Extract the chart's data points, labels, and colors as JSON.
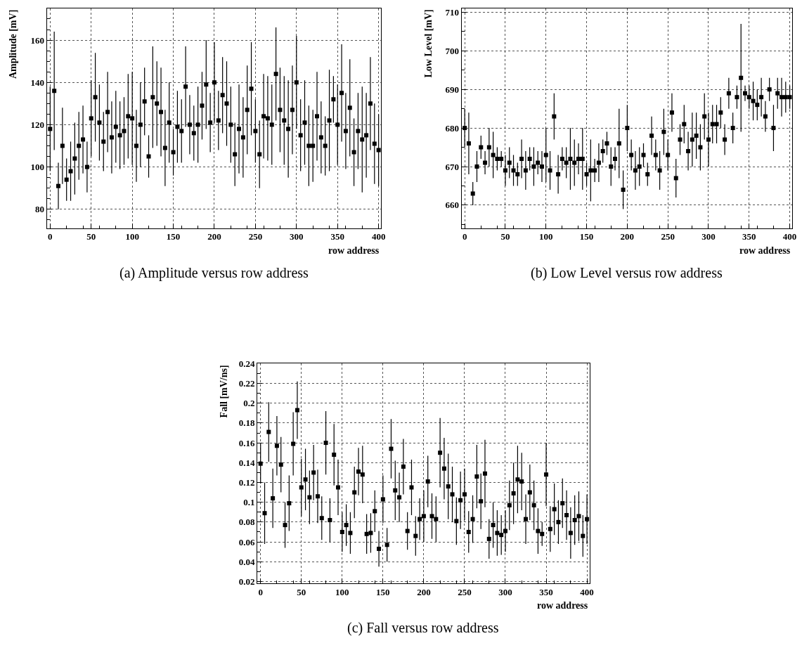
{
  "chart_data": [
    {
      "type": "scatter",
      "xlabel": "row address",
      "ylabel": "Amplitude [mV]",
      "annotations": [
        "(a) Amplitude versus row address"
      ],
      "marker": "square",
      "grid": true,
      "color": "#000000",
      "x": [
        0,
        5,
        10,
        15,
        20,
        25,
        30,
        35,
        40,
        45,
        50,
        55,
        60,
        65,
        70,
        75,
        80,
        85,
        90,
        95,
        100,
        105,
        110,
        115,
        120,
        125,
        130,
        135,
        140,
        145,
        150,
        155,
        160,
        165,
        170,
        175,
        180,
        185,
        190,
        195,
        200,
        205,
        210,
        215,
        220,
        225,
        230,
        235,
        240,
        245,
        250,
        255,
        260,
        265,
        270,
        275,
        280,
        285,
        290,
        295,
        300,
        305,
        310,
        315,
        320,
        325,
        330,
        335,
        340,
        345,
        350,
        355,
        360,
        365,
        370,
        375,
        380,
        385,
        390,
        395,
        400
      ],
      "values": [
        118,
        136,
        91,
        110,
        94,
        98,
        104,
        110,
        113,
        100,
        123,
        133,
        121,
        112,
        126,
        114,
        119,
        115,
        117,
        124,
        123,
        110,
        120,
        131,
        105,
        133,
        130,
        126,
        109,
        121,
        107,
        119,
        117,
        138,
        120,
        116,
        120,
        129,
        139,
        121,
        140,
        122,
        134,
        130,
        120,
        106,
        118,
        114,
        127,
        137,
        117,
        106,
        124,
        123,
        120,
        144,
        127,
        122,
        118,
        127,
        140,
        115,
        121,
        110,
        110,
        124,
        114,
        110,
        122,
        132,
        120,
        135,
        117,
        128,
        107,
        117,
        113,
        115,
        130,
        111,
        108
      ],
      "errors": [
        20,
        28,
        11,
        18,
        10,
        14,
        17,
        16,
        16,
        12,
        18,
        21,
        18,
        14,
        19,
        17,
        17,
        16,
        16,
        20,
        22,
        17,
        20,
        16,
        10,
        24,
        20,
        21,
        18,
        19,
        11,
        17,
        15,
        19,
        14,
        13,
        18,
        16,
        21,
        14,
        19,
        14,
        18,
        20,
        18,
        15,
        21,
        19,
        21,
        22,
        15,
        16,
        20,
        20,
        19,
        22,
        20,
        21,
        23,
        21,
        22,
        17,
        20,
        19,
        17,
        21,
        17,
        14,
        24,
        11,
        19,
        23,
        18,
        23,
        16,
        18,
        25,
        20,
        22,
        19,
        17
      ],
      "xlim": [
        -4,
        403
      ],
      "ylim": [
        71,
        175
      ],
      "xticks": [
        0,
        50,
        100,
        150,
        200,
        250,
        300,
        350,
        400
      ],
      "yticks": [
        80,
        100,
        120,
        140,
        160
      ]
    },
    {
      "type": "scatter",
      "xlabel": "row address",
      "ylabel": "Low Level [mV]",
      "annotations": [
        "(b) Low Level versus row address"
      ],
      "marker": "square",
      "grid": true,
      "color": "#000000",
      "x": [
        0,
        5,
        10,
        15,
        20,
        25,
        30,
        35,
        40,
        45,
        50,
        55,
        60,
        65,
        70,
        75,
        80,
        85,
        90,
        95,
        100,
        105,
        110,
        115,
        120,
        125,
        130,
        135,
        140,
        145,
        150,
        155,
        160,
        165,
        170,
        175,
        180,
        185,
        190,
        195,
        200,
        205,
        210,
        215,
        220,
        225,
        230,
        235,
        240,
        245,
        250,
        255,
        260,
        265,
        270,
        275,
        280,
        285,
        290,
        295,
        300,
        305,
        310,
        315,
        320,
        325,
        330,
        335,
        340,
        345,
        350,
        355,
        360,
        365,
        370,
        375,
        380,
        385,
        390,
        395,
        400
      ],
      "values": [
        680,
        676,
        663,
        670,
        675,
        671,
        675,
        673,
        672,
        672,
        669,
        671,
        669,
        668,
        672,
        669,
        672,
        670,
        671,
        670,
        673,
        669,
        683,
        668,
        672,
        671,
        672,
        671,
        672,
        672,
        668,
        669,
        669,
        671,
        674,
        676,
        670,
        672,
        676,
        664,
        680,
        673,
        669,
        670,
        673,
        668,
        678,
        673,
        669,
        679,
        673,
        684,
        667,
        677,
        681,
        674,
        677,
        678,
        675,
        683,
        677,
        681,
        681,
        684,
        677,
        689,
        680,
        688,
        693,
        689,
        688,
        687,
        686,
        688,
        683,
        690,
        680,
        689,
        688,
        688,
        688
      ],
      "errors": [
        5,
        8,
        3,
        4,
        3,
        3,
        5,
        6,
        3,
        2,
        4,
        4,
        4,
        3,
        5,
        5,
        3,
        5,
        3,
        4,
        7,
        5,
        6,
        5,
        3,
        4,
        8,
        6,
        4,
        8,
        3,
        8,
        3,
        5,
        3,
        3,
        5,
        3,
        9,
        5,
        6,
        4,
        5,
        5,
        3,
        3,
        5,
        4,
        5,
        6,
        4,
        5,
        5,
        4,
        5,
        5,
        7,
        6,
        6,
        6,
        7,
        5,
        5,
        4,
        4,
        4,
        4,
        3,
        14,
        2,
        3,
        5,
        4,
        5,
        4,
        3,
        6,
        4,
        5,
        4,
        3
      ],
      "xlim": [
        -4,
        403
      ],
      "ylim": [
        654,
        711
      ],
      "xticks": [
        0,
        50,
        100,
        150,
        200,
        250,
        300,
        350,
        400
      ],
      "yticks": [
        660,
        670,
        680,
        690,
        700,
        710
      ]
    },
    {
      "type": "scatter",
      "xlabel": "row address",
      "ylabel": "Fall [mV/ns]",
      "annotations": [
        "(c) Fall versus row address"
      ],
      "marker": "square",
      "grid": true,
      "color": "#000000",
      "x": [
        0,
        5,
        10,
        15,
        20,
        25,
        30,
        35,
        40,
        45,
        50,
        55,
        60,
        65,
        70,
        75,
        80,
        85,
        90,
        95,
        100,
        105,
        110,
        115,
        120,
        125,
        130,
        135,
        140,
        145,
        150,
        155,
        160,
        165,
        170,
        175,
        180,
        185,
        190,
        195,
        200,
        205,
        210,
        215,
        220,
        225,
        230,
        235,
        240,
        245,
        250,
        255,
        260,
        265,
        270,
        275,
        280,
        285,
        290,
        295,
        300,
        305,
        310,
        315,
        320,
        325,
        330,
        335,
        340,
        345,
        350,
        355,
        360,
        365,
        370,
        375,
        380,
        385,
        390,
        395,
        400
      ],
      "values": [
        0.139,
        0.089,
        0.171,
        0.104,
        0.157,
        0.138,
        0.077,
        0.099,
        0.159,
        0.193,
        0.115,
        0.123,
        0.105,
        0.13,
        0.106,
        0.084,
        0.16,
        0.082,
        0.148,
        0.115,
        0.07,
        0.077,
        0.069,
        0.11,
        0.131,
        0.128,
        0.068,
        0.069,
        0.091,
        0.053,
        0.103,
        0.057,
        0.154,
        0.112,
        0.105,
        0.136,
        0.071,
        0.115,
        0.066,
        0.083,
        0.086,
        0.121,
        0.086,
        0.083,
        0.15,
        0.134,
        0.116,
        0.108,
        0.081,
        0.102,
        0.108,
        0.07,
        0.083,
        0.126,
        0.101,
        0.129,
        0.063,
        0.077,
        0.069,
        0.067,
        0.071,
        0.097,
        0.109,
        0.123,
        0.121,
        0.083,
        0.11,
        0.097,
        0.071,
        0.068,
        0.128,
        0.073,
        0.093,
        0.08,
        0.099,
        0.087,
        0.069,
        0.082,
        0.086,
        0.066,
        0.083
      ],
      "errors": [
        0.02,
        0.031,
        0.03,
        0.03,
        0.03,
        0.028,
        0.023,
        0.028,
        0.032,
        0.029,
        0.029,
        0.031,
        0.027,
        0.028,
        0.027,
        0.022,
        0.032,
        0.022,
        0.031,
        0.028,
        0.02,
        0.021,
        0.021,
        0.026,
        0.024,
        0.029,
        0.02,
        0.02,
        0.021,
        0.018,
        0.024,
        0.017,
        0.03,
        0.03,
        0.025,
        0.028,
        0.019,
        0.028,
        0.02,
        0.021,
        0.026,
        0.026,
        0.023,
        0.023,
        0.035,
        0.031,
        0.033,
        0.028,
        0.024,
        0.029,
        0.026,
        0.021,
        0.024,
        0.032,
        0.028,
        0.034,
        0.02,
        0.023,
        0.023,
        0.02,
        0.021,
        0.025,
        0.031,
        0.034,
        0.029,
        0.025,
        0.028,
        0.025,
        0.023,
        0.012,
        0.032,
        0.023,
        0.026,
        0.022,
        0.025,
        0.025,
        0.026,
        0.025,
        0.025,
        0.021,
        0.025
      ],
      "xlim": [
        -4,
        403
      ],
      "ylim": [
        0.018,
        0.24
      ],
      "xticks": [
        0,
        50,
        100,
        150,
        200,
        250,
        300,
        350,
        400
      ],
      "yticks": [
        0.02,
        0.04,
        0.06,
        0.08,
        0.1,
        0.12,
        0.14,
        0.16,
        0.18,
        0.2,
        0.22,
        0.24
      ]
    }
  ]
}
